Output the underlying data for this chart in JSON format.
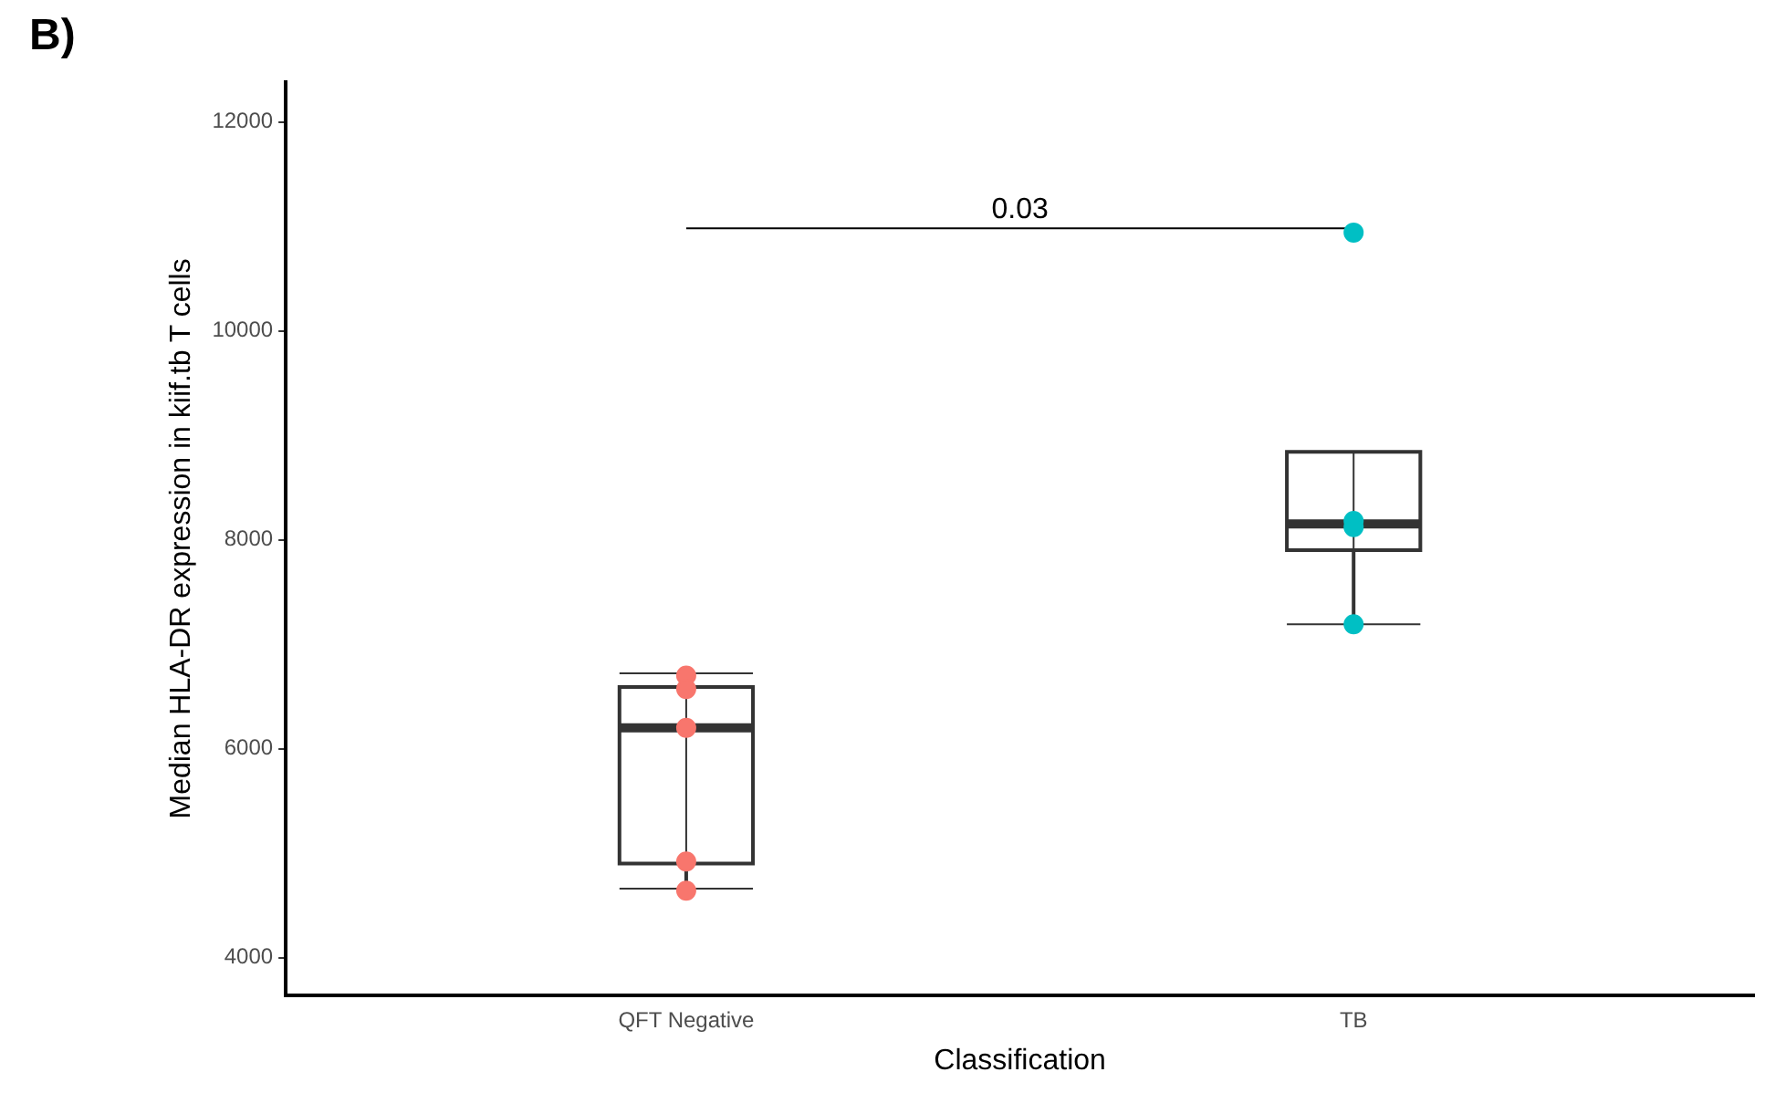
{
  "chart_data": {
    "type": "box",
    "xlabel": "Classification",
    "ylabel": "Median HLA-DR expression in kiif.tb T cells",
    "categories": [
      "QFT Negative",
      "TB"
    ],
    "boxes": [
      {
        "low": 4660,
        "q1": 4900,
        "median": 6200,
        "q3": 6590,
        "high": 6720
      },
      {
        "low": 7190,
        "q1": 7900,
        "median": 8150,
        "q3": 8840,
        "high": 8840
      }
    ],
    "series": [
      {
        "type": "scatter",
        "color": "#f8766d",
        "x": [
          "QFT Negative",
          "QFT Negative",
          "QFT Negative",
          "QFT Negative",
          "QFT Negative"
        ],
        "values": [
          6700,
          6570,
          6200,
          4920,
          4640
        ]
      },
      {
        "type": "scatter",
        "color": "#00bfc4",
        "x": [
          "TB",
          "TB",
          "TB",
          "TB"
        ],
        "values": [
          10940,
          8180,
          8120,
          7190
        ]
      }
    ],
    "ylim": [
      3640,
      12380
    ],
    "yticks": [
      4000,
      6000,
      8000,
      10000,
      12000
    ],
    "grid": false,
    "legend": false,
    "annotations": [
      "B)",
      "0.03"
    ]
  }
}
